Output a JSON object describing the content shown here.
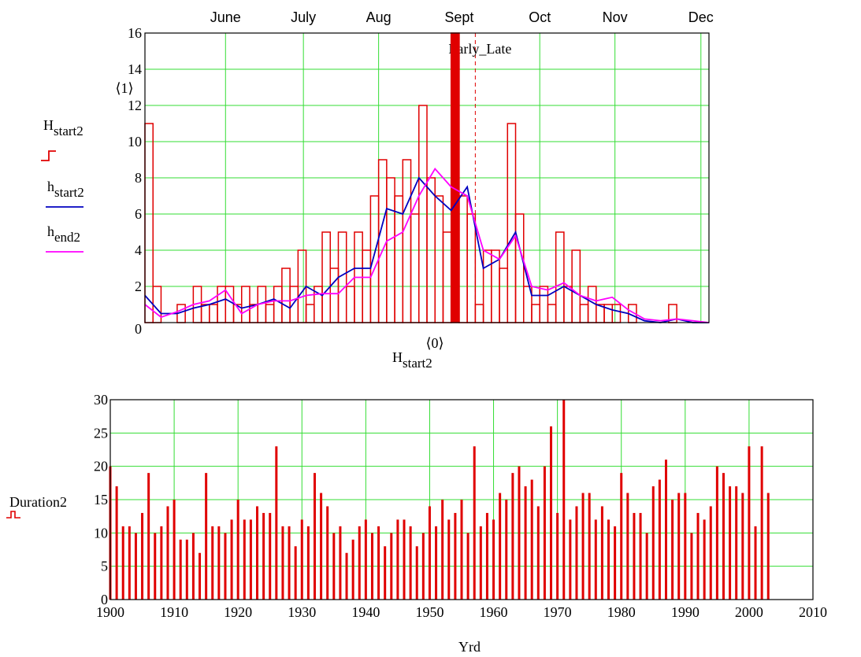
{
  "chart_data": [
    {
      "type": "histogram",
      "xlim": [
        122,
        332
      ],
      "xticks": [
        {
          "value": 152,
          "label": "June"
        },
        {
          "value": 181,
          "label": "July"
        },
        {
          "value": 209,
          "label": "Aug"
        },
        {
          "value": 239,
          "label": "Sept"
        },
        {
          "value": 269,
          "label": "Oct"
        },
        {
          "value": 297,
          "label": "Nov"
        },
        {
          "value": 329,
          "label": "Dec"
        }
      ],
      "ylim": [
        0,
        16
      ],
      "yticks": [
        0,
        2,
        4,
        6,
        8,
        10,
        12,
        14,
        16
      ],
      "ylabel_superscript": "⟨1⟩",
      "xlabel": {
        "symbol": "H",
        "subscript": "start2",
        "superscript": "⟨0⟩"
      },
      "marker": {
        "label": "Early_Late",
        "value": 245
      },
      "grid": true,
      "series": [
        {
          "symbol": "H",
          "subscript": "start2",
          "color": "#e00000",
          "kind": "step",
          "bins": [
            122,
            125,
            128,
            131,
            134,
            137,
            140,
            143,
            146,
            149,
            152,
            155,
            158,
            161,
            164,
            167,
            170,
            173,
            176,
            179,
            182,
            185,
            188,
            191,
            194,
            197,
            200,
            203,
            206,
            209,
            212,
            215,
            218,
            221,
            224,
            227,
            230,
            233,
            236,
            239,
            242,
            245,
            248,
            251,
            254,
            257,
            260,
            263,
            266,
            269,
            272,
            275,
            278,
            281,
            284,
            287,
            290,
            293,
            296,
            299,
            302,
            305,
            308,
            311,
            314,
            317,
            320,
            323,
            326,
            329,
            332
          ],
          "values": [
            11,
            2,
            0,
            0,
            1,
            0,
            2,
            1,
            1,
            2,
            2,
            1,
            2,
            1,
            2,
            1,
            2,
            3,
            2,
            4,
            1,
            2,
            5,
            3,
            5,
            2,
            5,
            4,
            7,
            9,
            8,
            7,
            9,
            6,
            12,
            8,
            7,
            5,
            16,
            7,
            6,
            1,
            4,
            4,
            3,
            11,
            6,
            2,
            1,
            2,
            1,
            5,
            2,
            4,
            1,
            2,
            1,
            1,
            1,
            0,
            1,
            0,
            0,
            0,
            0,
            1,
            0,
            0,
            0,
            0
          ]
        },
        {
          "symbol": "h",
          "subscript": "start2",
          "color": "#0000c0",
          "kind": "line",
          "x": [
            122,
            128,
            134,
            140,
            146,
            152,
            158,
            164,
            170,
            176,
            182,
            188,
            194,
            200,
            206,
            212,
            218,
            224,
            230,
            236,
            242,
            248,
            254,
            260,
            266,
            272,
            278,
            284,
            290,
            296,
            302,
            308,
            314,
            320,
            326,
            332
          ],
          "values": [
            1.5,
            0.5,
            0.5,
            0.8,
            1.0,
            1.3,
            0.8,
            1.0,
            1.3,
            0.8,
            2.0,
            1.5,
            2.5,
            3.0,
            3.0,
            6.3,
            6.0,
            8.0,
            7.0,
            6.2,
            7.5,
            3.0,
            3.5,
            5.0,
            1.5,
            1.5,
            2.0,
            1.5,
            1.0,
            0.7,
            0.5,
            0.1,
            0,
            0.2,
            0,
            0
          ]
        },
        {
          "symbol": "h",
          "subscript": "end2",
          "color": "#ff00ff",
          "kind": "line",
          "x": [
            122,
            128,
            134,
            140,
            146,
            152,
            158,
            164,
            170,
            176,
            182,
            188,
            194,
            200,
            206,
            212,
            218,
            224,
            230,
            236,
            242,
            248,
            254,
            260,
            266,
            272,
            278,
            284,
            290,
            296,
            302,
            308,
            314,
            320,
            326,
            332
          ],
          "values": [
            1.0,
            0.3,
            0.6,
            1.0,
            1.2,
            1.8,
            0.5,
            1.0,
            1.2,
            1.2,
            1.5,
            1.6,
            1.6,
            2.5,
            2.5,
            4.5,
            5.0,
            7.0,
            8.5,
            7.5,
            7.0,
            4.0,
            3.5,
            4.8,
            2.0,
            1.8,
            2.2,
            1.5,
            1.2,
            1.4,
            0.7,
            0.2,
            0.1,
            0.2,
            0.1,
            0
          ]
        }
      ]
    },
    {
      "type": "bar",
      "xlim": [
        1900,
        2010
      ],
      "xticks": [
        1900,
        1910,
        1920,
        1930,
        1940,
        1950,
        1960,
        1970,
        1980,
        1990,
        2000,
        2010
      ],
      "ylim": [
        0,
        30
      ],
      "yticks": [
        0,
        5,
        10,
        15,
        20,
        25,
        30
      ],
      "xlabel": "Yrd",
      "grid": true,
      "x": [
        1900,
        1901,
        1902,
        1903,
        1904,
        1905,
        1906,
        1907,
        1908,
        1909,
        1910,
        1911,
        1912,
        1913,
        1914,
        1915,
        1916,
        1917,
        1918,
        1919,
        1920,
        1921,
        1922,
        1923,
        1924,
        1925,
        1926,
        1927,
        1928,
        1929,
        1930,
        1931,
        1932,
        1933,
        1934,
        1935,
        1936,
        1937,
        1938,
        1939,
        1940,
        1941,
        1942,
        1943,
        1944,
        1945,
        1946,
        1947,
        1948,
        1949,
        1950,
        1951,
        1952,
        1953,
        1954,
        1955,
        1956,
        1957,
        1958,
        1959,
        1960,
        1961,
        1962,
        1963,
        1964,
        1965,
        1966,
        1967,
        1968,
        1969,
        1970,
        1971,
        1972,
        1973,
        1974,
        1975,
        1976,
        1977,
        1978,
        1979,
        1980,
        1981,
        1982,
        1983,
        1984,
        1985,
        1986,
        1987,
        1988,
        1989,
        1990,
        1991,
        1992,
        1993,
        1994,
        1995,
        1996,
        1997,
        1998,
        1999,
        2000,
        2001,
        2002,
        2003
      ],
      "series": [
        {
          "name": "Duration2",
          "color": "#e00000",
          "values": [
            20,
            17,
            11,
            11,
            10,
            13,
            19,
            10,
            11,
            14,
            15,
            9,
            9,
            10,
            7,
            19,
            11,
            11,
            10,
            12,
            15,
            12,
            12,
            14,
            13,
            13,
            23,
            11,
            11,
            8,
            12,
            11,
            19,
            16,
            14,
            10,
            11,
            7,
            9,
            11,
            12,
            10,
            11,
            8,
            10,
            12,
            12,
            11,
            8,
            10,
            14,
            11,
            15,
            12,
            13,
            15,
            10,
            23,
            11,
            13,
            12,
            16,
            15,
            19,
            20,
            17,
            18,
            14,
            20,
            26,
            13,
            30,
            12,
            14,
            16,
            16,
            12,
            14,
            12,
            11,
            19,
            16,
            13,
            13,
            10,
            17,
            18,
            21,
            15,
            16,
            16,
            10,
            13,
            12,
            14,
            20,
            19,
            17,
            17,
            16,
            23,
            11,
            23,
            16
          ]
        }
      ]
    }
  ]
}
